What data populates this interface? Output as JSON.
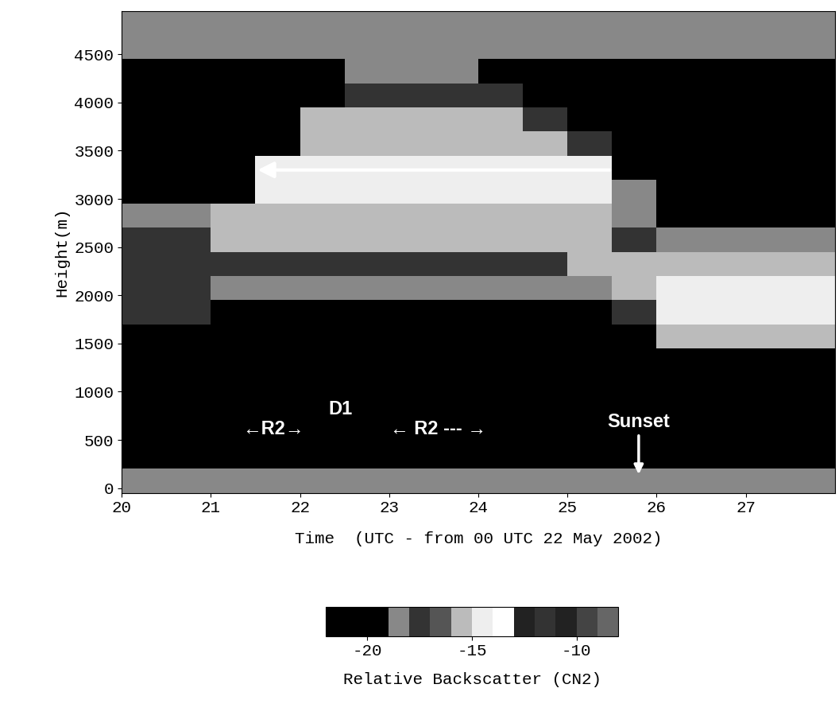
{
  "chart_data": {
    "type": "heatmap",
    "xlabel": "Time  (UTC - from 00 UTC 22 May 2002)",
    "ylabel": "Height(m)",
    "xlim": [
      20,
      28
    ],
    "xticks": [
      20,
      21,
      22,
      23,
      24,
      25,
      26,
      27
    ],
    "ylim": [
      -50,
      4950
    ],
    "yticks": [
      0,
      500,
      1000,
      1500,
      2000,
      2500,
      3000,
      3500,
      4000,
      4500
    ],
    "x_edges": [
      20,
      20.5,
      21,
      21.5,
      22,
      22.5,
      23,
      23.5,
      24,
      24.5,
      25,
      25.5,
      26,
      26.5,
      27,
      27.5,
      28
    ],
    "y_edges": [
      -50,
      200,
      450,
      700,
      950,
      1200,
      1450,
      1700,
      1950,
      2200,
      2450,
      2700,
      2950,
      3200,
      3450,
      3700,
      3950,
      4200,
      4450,
      4700,
      4950
    ],
    "cells": [
      [
        -18.5,
        -18.5,
        -18.5,
        -18.5,
        -18.5,
        -18.5,
        -18.5,
        -18.5,
        -18.5,
        -18.5,
        -18.5,
        -18.5,
        -18.5,
        -18.5,
        -18.5,
        -18.5
      ],
      [
        -21,
        -21,
        -21,
        -21,
        -21,
        -21,
        -21,
        -21,
        -21,
        -21,
        -21,
        -21,
        -21,
        -21,
        -21,
        -21
      ],
      [
        -21,
        -21,
        -21,
        -21,
        -21,
        -21,
        -21,
        -21,
        -21,
        -21,
        -21,
        -21,
        -21,
        -21,
        -21,
        -21
      ],
      [
        -21,
        -21,
        -21,
        -21,
        -21,
        -21,
        -21,
        -21,
        -21,
        -21,
        -21,
        -21,
        -21,
        -21,
        -21,
        -21
      ],
      [
        -21,
        -21,
        -21,
        -21,
        -21,
        -21,
        -21,
        -21,
        -21,
        -21,
        -21,
        -21,
        -21,
        -21,
        -21,
        -21
      ],
      [
        -21,
        -21,
        -21,
        -21,
        -21,
        -21,
        -21,
        -21,
        -21,
        -21,
        -21,
        -21,
        -21,
        -21,
        -21,
        -21
      ],
      [
        -21,
        -21,
        -21,
        -21,
        -21,
        -21,
        -21,
        -21,
        -21,
        -21,
        -21,
        -21,
        -15.5,
        -15.5,
        -15.5,
        -15.5
      ],
      [
        -17.5,
        -17.5,
        -21,
        -21,
        -21,
        -21,
        -21,
        -21,
        -21,
        -21,
        -21,
        -17.5,
        -14.5,
        -14.5,
        -14.5,
        -14.5
      ],
      [
        -17.5,
        -17.5,
        -18.5,
        -18.5,
        -18.5,
        -18.5,
        -18.5,
        -18.5,
        -18.5,
        -18.5,
        -18.5,
        -15.5,
        -14.5,
        -14.5,
        -14.5,
        -14.5
      ],
      [
        -17.5,
        -17.5,
        -17.5,
        -17.5,
        -17.5,
        -17.5,
        -17.5,
        -17.5,
        -17.5,
        -17.5,
        -15.5,
        -15.5,
        -15.5,
        -15.5,
        -15.5,
        -15.5
      ],
      [
        -17.5,
        -17.5,
        -15.5,
        -15.5,
        -15.5,
        -15.5,
        -15.5,
        -15.5,
        -15.5,
        -15.5,
        -15.5,
        -17.5,
        -18.5,
        -18.5,
        -18.5,
        -18.5
      ],
      [
        -18.5,
        -18.5,
        -15.5,
        -15.5,
        -15.5,
        -15.5,
        -15.5,
        -15.5,
        -15.5,
        -15.5,
        -15.5,
        -18.5,
        -21,
        -21,
        -21,
        -21
      ],
      [
        -21,
        -21,
        -21,
        -14.5,
        -14.5,
        -14.5,
        -14.5,
        -14.5,
        -14.5,
        -14.5,
        -14.5,
        -18.5,
        -21,
        -21,
        -21,
        -21
      ],
      [
        -21,
        -21,
        -21,
        -14.5,
        -14.5,
        -14.5,
        -14.5,
        -14.5,
        -14.5,
        -14.5,
        -14.5,
        -21,
        -21,
        -21,
        -21,
        -21
      ],
      [
        -21,
        -21,
        -21,
        -21,
        -15.5,
        -15.5,
        -15.5,
        -15.5,
        -15.5,
        -15.5,
        -17.5,
        -21,
        -21,
        -21,
        -21,
        -21
      ],
      [
        -21,
        -21,
        -21,
        -21,
        -15.5,
        -15.5,
        -15.5,
        -15.5,
        -15.5,
        -17.5,
        -21,
        -21,
        -21,
        -21,
        -21,
        -21
      ],
      [
        -21,
        -21,
        -21,
        -21,
        -21,
        -17.5,
        -17.5,
        -17.5,
        -17.5,
        -21,
        -21,
        -21,
        -21,
        -21,
        -21,
        -21
      ],
      [
        -21,
        -21,
        -21,
        -21,
        -21,
        -18.5,
        -18.5,
        -18.5,
        -21,
        -21,
        -21,
        -21,
        -21,
        -21,
        -21,
        -21
      ],
      [
        -18.5,
        -18.5,
        -18.5,
        -18.5,
        -18.5,
        -18.5,
        -18.5,
        -18.5,
        -18.5,
        -18.5,
        -18.5,
        -18.5,
        -18.5,
        -18.5,
        -18.5,
        -18.5
      ],
      [
        -18.5,
        -18.5,
        -18.5,
        -18.5,
        -18.5,
        -18.5,
        -18.5,
        -18.5,
        -18.5,
        -18.5,
        -18.5,
        -18.5,
        -18.5,
        -18.5,
        -18.5,
        -18.5
      ]
    ],
    "color_range": [
      -22,
      -8
    ],
    "color_ticks": [
      -20,
      -15,
      -10
    ],
    "colorbar_label": "Relative Backscatter (CN2)",
    "annotations": [
      {
        "text": "←R2→",
        "x": 21.7,
        "y": 520
      },
      {
        "text": "D1",
        "x": 22.45,
        "y": 720
      },
      {
        "text": "← R2 --- →",
        "x": 23.55,
        "y": 520
      },
      {
        "text": "Sunset",
        "x": 25.8,
        "y": 590,
        "arrow_to": [
          25.8,
          120
        ]
      }
    ],
    "arrow": {
      "x_start": 25.5,
      "x_end": 21.5,
      "y": 3300
    }
  }
}
